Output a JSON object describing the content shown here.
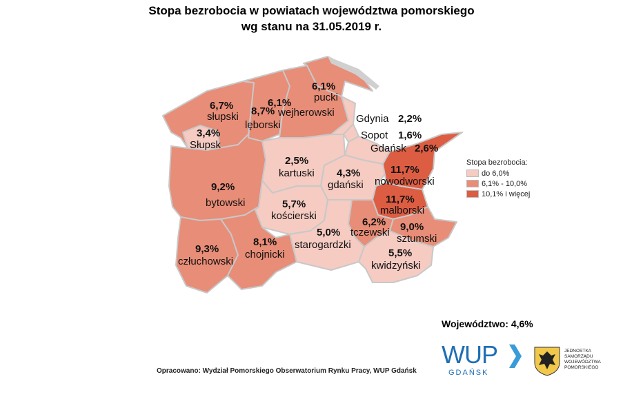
{
  "title_line1": "Stopa bezrobocia w powiatach województwa pomorskiego",
  "title_line2": "wg stanu na 31.05.2019 r.",
  "colors": {
    "low": "#f5cbc2",
    "mid": "#e88d77",
    "high": "#dd5d43",
    "border": "#c8c8c8"
  },
  "legend": {
    "title": "Stopa bezrobocia:",
    "items": [
      {
        "label": "do 6,0%",
        "color": "#f5cbc2"
      },
      {
        "label": "6,1% - 10,0%",
        "color": "#e88d77"
      },
      {
        "label": "10,1% i więcej",
        "color": "#dd5d43"
      }
    ]
  },
  "districts": [
    {
      "id": "pucki",
      "name": "pucki",
      "value": "6,1%",
      "class": "mid"
    },
    {
      "id": "slupski",
      "name": "słupski",
      "value": "6,7%",
      "class": "mid"
    },
    {
      "id": "leborski",
      "name": "lęborski",
      "value": "8,7%",
      "class": "mid"
    },
    {
      "id": "wejherowski",
      "name": "wejherowski",
      "value": "6,1%",
      "class": "mid"
    },
    {
      "id": "slupsk",
      "name": "Słupsk",
      "value": "3,4%",
      "class": "low"
    },
    {
      "id": "gdynia",
      "name": "Gdynia",
      "value": "2,2%",
      "class": "low"
    },
    {
      "id": "sopot",
      "name": "Sopot",
      "value": "1,6%",
      "class": "low"
    },
    {
      "id": "gdansk",
      "name": "Gdańsk",
      "value": "2,6%",
      "class": "low"
    },
    {
      "id": "kartuski",
      "name": "kartuski",
      "value": "2,5%",
      "class": "low"
    },
    {
      "id": "gdanski",
      "name": "gdański",
      "value": "4,3%",
      "class": "low"
    },
    {
      "id": "nowodworski",
      "name": "nowodworski",
      "value": "11,7%",
      "class": "high"
    },
    {
      "id": "bytowski",
      "name": "bytowski",
      "value": "9,2%",
      "class": "mid"
    },
    {
      "id": "koscierski",
      "name": "kościerski",
      "value": "5,7%",
      "class": "low"
    },
    {
      "id": "malborski",
      "name": "malborski",
      "value": "11,7%",
      "class": "high"
    },
    {
      "id": "tczewski",
      "name": "tczewski",
      "value": "6,2%",
      "class": "mid"
    },
    {
      "id": "sztumski",
      "name": "sztumski",
      "value": "9,0%",
      "class": "mid"
    },
    {
      "id": "czluchowski",
      "name": "człuchowski",
      "value": "9,3%",
      "class": "mid"
    },
    {
      "id": "chojnicki",
      "name": "chojnicki",
      "value": "8,1%",
      "class": "mid"
    },
    {
      "id": "starogardzki",
      "name": "starogardzki",
      "value": "5,0%",
      "class": "low"
    },
    {
      "id": "kwidzynski",
      "name": "kwidzyński",
      "value": "5,5%",
      "class": "low"
    }
  ],
  "wojewodztwo": "Województwo: 4,6%",
  "source": "Opracowano: Wydział Pomorskiego Obserwatorium Rynku Pracy, WUP Gdańsk",
  "wup_logo": {
    "text": "WUP",
    "sub": "GDAŃSK",
    "arrow_icon": "chevron-right-icon"
  },
  "jednostka_lines": [
    "JEDNOSTKA",
    "SAMORZĄDU",
    "WOJEWÓDZTWA",
    "POMORSKIEGO"
  ]
}
